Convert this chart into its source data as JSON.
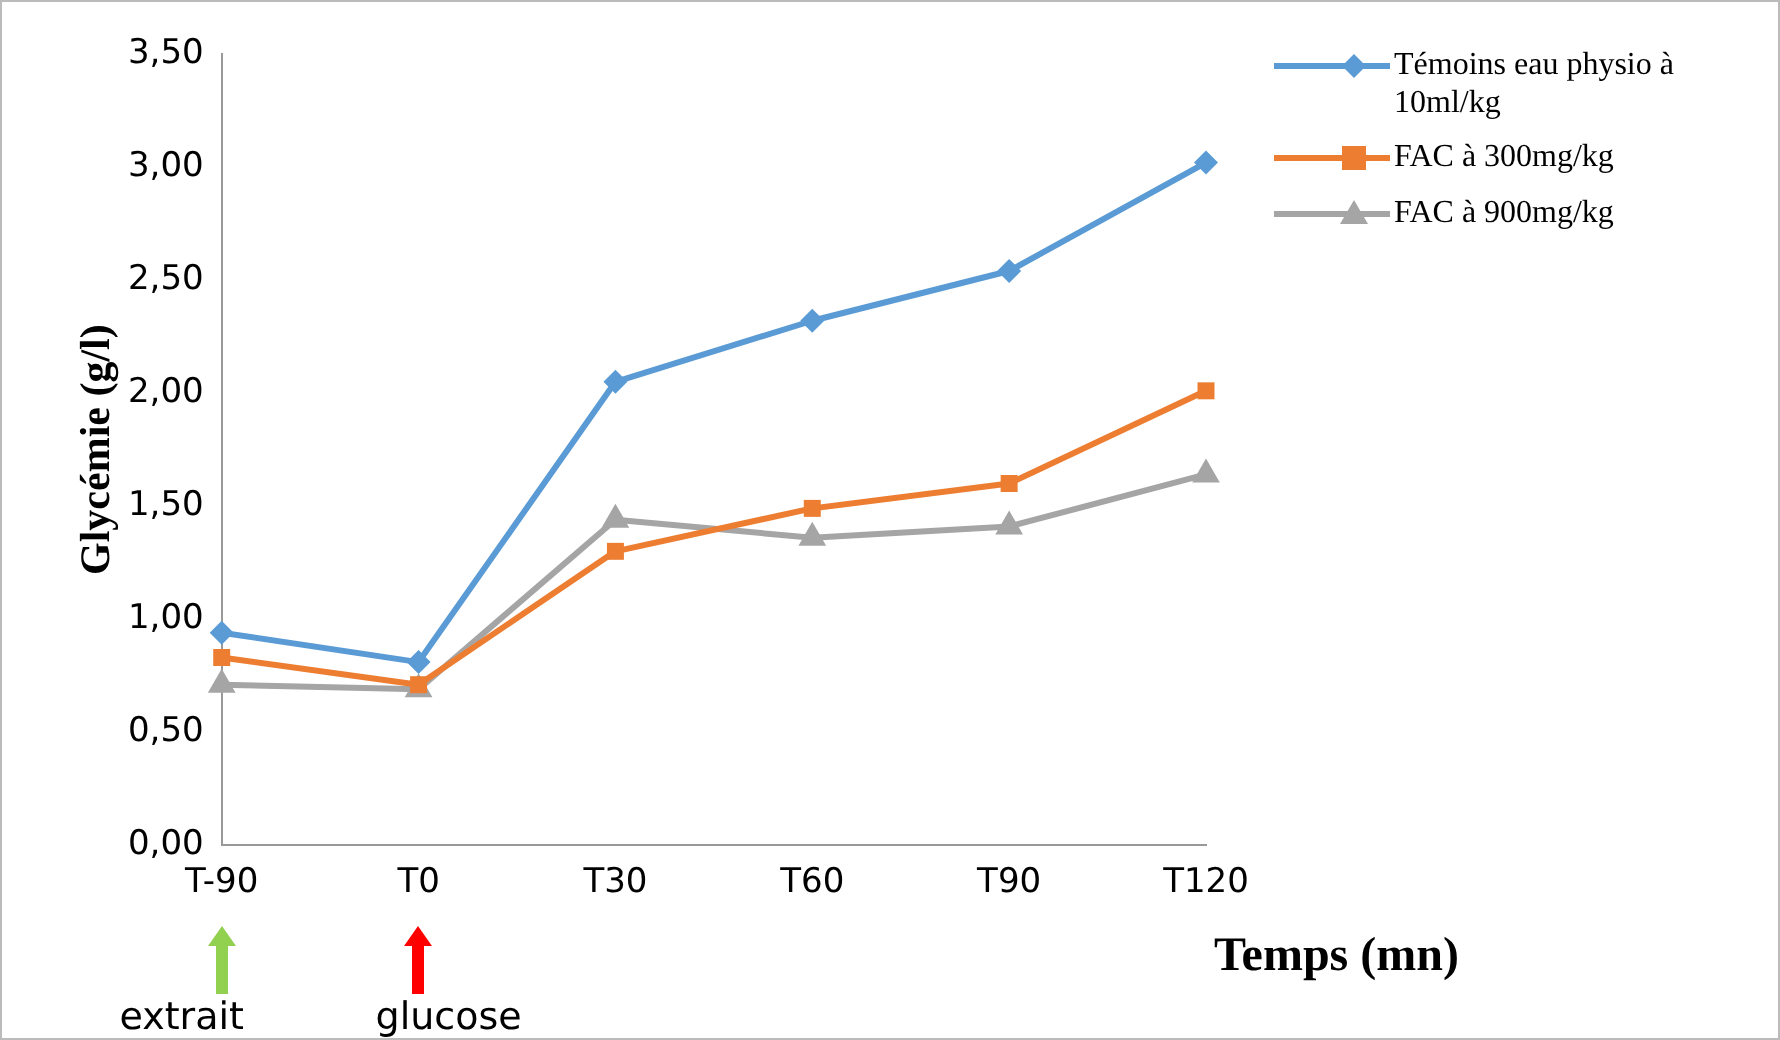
{
  "chart_data": {
    "type": "line",
    "ylabel": "Glycémie (g/l)",
    "xlabel": "Temps (mn)",
    "categories": [
      "T-90",
      "T0",
      "T30",
      "T60",
      "T90",
      "T120"
    ],
    "series": [
      {
        "name": "Témoins eau physio à 10ml/kg",
        "color": "#5b9bd5",
        "marker": "diamond",
        "values": [
          0.94,
          0.81,
          2.05,
          2.32,
          2.54,
          3.02
        ]
      },
      {
        "name": "FAC à 300mg/kg",
        "color": "#ed7d31",
        "marker": "square",
        "values": [
          0.83,
          0.71,
          1.3,
          1.49,
          1.6,
          2.01
        ]
      },
      {
        "name": "FAC à 900mg/kg",
        "color": "#a5a5a5",
        "marker": "triangle",
        "values": [
          0.71,
          0.69,
          1.44,
          1.36,
          1.41,
          1.64
        ]
      }
    ],
    "ylim": [
      0,
      3.5
    ],
    "yticks": [
      {
        "value": 0,
        "label": "0,00"
      },
      {
        "value": 0.5,
        "label": "0,50"
      },
      {
        "value": 1,
        "label": "1,00"
      },
      {
        "value": 1.5,
        "label": "1,50"
      },
      {
        "value": 2,
        "label": "2,00"
      },
      {
        "value": 2.5,
        "label": "2,50"
      },
      {
        "value": 3,
        "label": "3,00"
      },
      {
        "value": 3.5,
        "label": "3,50"
      }
    ],
    "grid": false,
    "legend": "right",
    "line_style": "solid",
    "annotations": [
      "extrait",
      "glucose"
    ]
  }
}
